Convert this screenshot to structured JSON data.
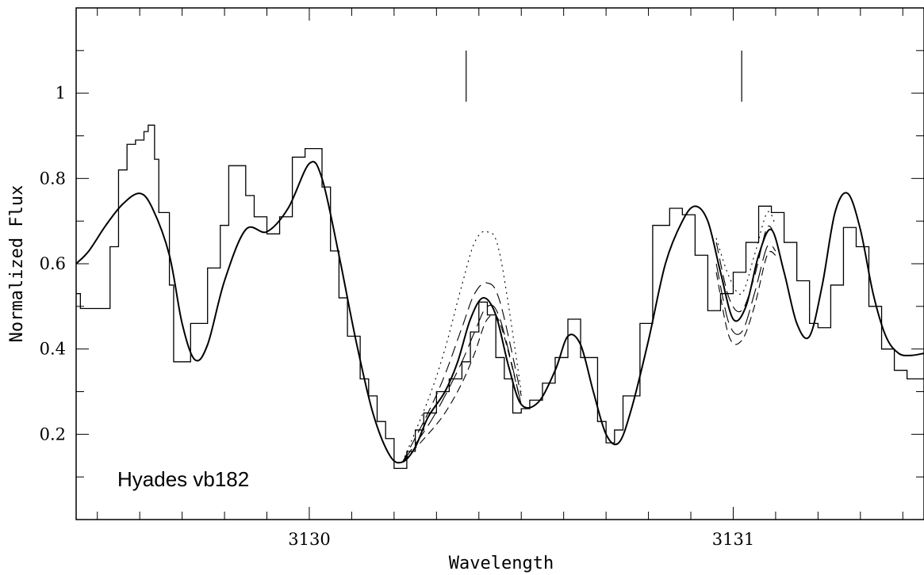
{
  "chart_data": {
    "type": "line",
    "title": "",
    "xlabel": "Wavelength",
    "ylabel": "Normalized Flux",
    "xlim": [
      3129.45,
      3131.45
    ],
    "ylim": [
      0.0,
      1.2
    ],
    "x_tick_labels": [
      {
        "value": 3130,
        "label": "3130"
      },
      {
        "value": 3131,
        "label": "3131"
      }
    ],
    "y_tick_labels": [
      {
        "value": 0.2,
        "label": "0.2"
      },
      {
        "value": 0.4,
        "label": "0.4"
      },
      {
        "value": 0.6,
        "label": "0.6"
      },
      {
        "value": 0.8,
        "label": "0.8"
      },
      {
        "value": 1.0,
        "label": "1"
      }
    ],
    "annotation": "Hyades vb182",
    "line_markers": [
      3130.37,
      3131.02
    ],
    "observed_step": {
      "x": [
        3129.45,
        3129.46,
        3129.49,
        3129.53,
        3129.55,
        3129.57,
        3129.59,
        3129.61,
        3129.62,
        3129.635,
        3129.645,
        3129.67,
        3129.68,
        3129.72,
        3129.76,
        3129.79,
        3129.81,
        3129.85,
        3129.87,
        3129.9,
        3129.93,
        3129.96,
        3129.99,
        3130.03,
        3130.05,
        3130.07,
        3130.09,
        3130.12,
        3130.14,
        3130.16,
        3130.18,
        3130.2,
        3130.23,
        3130.25,
        3130.27,
        3130.3,
        3130.33,
        3130.36,
        3130.38,
        3130.4,
        3130.42,
        3130.44,
        3130.46,
        3130.48,
        3130.5,
        3130.52,
        3130.55,
        3130.58,
        3130.61,
        3130.64,
        3130.68,
        3130.7,
        3130.72,
        3130.74,
        3130.78,
        3130.81,
        3130.85,
        3130.88,
        3130.91,
        3130.94,
        3130.97,
        3131.0,
        3131.03,
        3131.06,
        3131.09,
        3131.12,
        3131.15,
        3131.18,
        3131.2,
        3131.23,
        3131.26,
        3131.29,
        3131.32,
        3131.35,
        3131.38,
        3131.41,
        3131.44
      ],
      "y": [
        0.53,
        0.495,
        0.495,
        0.64,
        0.82,
        0.88,
        0.89,
        0.91,
        0.925,
        0.845,
        0.72,
        0.55,
        0.37,
        0.46,
        0.59,
        0.69,
        0.83,
        0.76,
        0.71,
        0.67,
        0.71,
        0.85,
        0.87,
        0.78,
        0.63,
        0.52,
        0.43,
        0.33,
        0.29,
        0.23,
        0.19,
        0.12,
        0.16,
        0.21,
        0.25,
        0.3,
        0.33,
        0.37,
        0.44,
        0.51,
        0.48,
        0.38,
        0.33,
        0.25,
        0.26,
        0.28,
        0.32,
        0.38,
        0.47,
        0.38,
        0.23,
        0.18,
        0.21,
        0.29,
        0.46,
        0.69,
        0.73,
        0.715,
        0.62,
        0.49,
        0.53,
        0.58,
        0.65,
        0.735,
        0.72,
        0.65,
        0.56,
        0.46,
        0.45,
        0.55,
        0.685,
        0.64,
        0.5,
        0.4,
        0.35,
        0.33,
        0.33
      ]
    },
    "synthetic_best": {
      "x": [
        3129.45,
        3129.48,
        3129.52,
        3129.56,
        3129.6,
        3129.63,
        3129.67,
        3129.7,
        3129.73,
        3129.76,
        3129.8,
        3129.85,
        3129.9,
        3129.95,
        3130.0,
        3130.03,
        3130.07,
        3130.11,
        3130.15,
        3130.19,
        3130.22,
        3130.25,
        3130.28,
        3130.32,
        3130.35,
        3130.38,
        3130.41,
        3130.44,
        3130.47,
        3130.5,
        3130.54,
        3130.58,
        3130.61,
        3130.64,
        3130.67,
        3130.7,
        3130.73,
        3130.76,
        3130.8,
        3130.84,
        3130.88,
        3130.91,
        3130.94,
        3130.97,
        3131.0,
        3131.03,
        3131.06,
        3131.09,
        3131.12,
        3131.15,
        3131.18,
        3131.21,
        3131.24,
        3131.27,
        3131.3,
        3131.33,
        3131.36,
        3131.39,
        3131.42,
        3131.45
      ],
      "y": [
        0.6,
        0.63,
        0.69,
        0.74,
        0.765,
        0.73,
        0.62,
        0.46,
        0.375,
        0.41,
        0.56,
        0.68,
        0.675,
        0.73,
        0.835,
        0.8,
        0.62,
        0.42,
        0.25,
        0.15,
        0.135,
        0.17,
        0.24,
        0.3,
        0.37,
        0.47,
        0.52,
        0.48,
        0.36,
        0.27,
        0.275,
        0.35,
        0.43,
        0.41,
        0.3,
        0.2,
        0.18,
        0.26,
        0.42,
        0.6,
        0.7,
        0.735,
        0.7,
        0.58,
        0.47,
        0.5,
        0.62,
        0.68,
        0.58,
        0.46,
        0.43,
        0.55,
        0.72,
        0.765,
        0.68,
        0.53,
        0.43,
        0.39,
        0.385,
        0.39
      ]
    },
    "synthetic_variants": [
      {
        "style": "dotted",
        "x": [
          3130.22,
          3130.28,
          3130.32,
          3130.36,
          3130.39,
          3130.42,
          3130.45,
          3130.5,
          3130.96,
          3130.99,
          3131.02,
          3131.05,
          3131.08,
          3131.1
        ],
        "y": [
          0.135,
          0.28,
          0.4,
          0.55,
          0.65,
          0.675,
          0.62,
          0.3,
          0.66,
          0.57,
          0.53,
          0.62,
          0.72,
          0.69
        ]
      },
      {
        "style": "dashed",
        "x": [
          3130.22,
          3130.28,
          3130.32,
          3130.36,
          3130.39,
          3130.42,
          3130.45,
          3130.5,
          3130.96,
          3130.99,
          3131.02,
          3131.05,
          3131.08,
          3131.1
        ],
        "y": [
          0.135,
          0.25,
          0.34,
          0.45,
          0.53,
          0.555,
          0.51,
          0.29,
          0.65,
          0.52,
          0.49,
          0.57,
          0.685,
          0.66
        ]
      },
      {
        "style": "dashed",
        "x": [
          3130.22,
          3130.28,
          3130.32,
          3130.36,
          3130.39,
          3130.42,
          3130.45,
          3130.5,
          3130.96,
          3130.99,
          3131.02,
          3131.05,
          3131.08,
          3131.1
        ],
        "y": [
          0.135,
          0.22,
          0.29,
          0.37,
          0.44,
          0.5,
          0.47,
          0.27,
          0.6,
          0.46,
          0.44,
          0.53,
          0.64,
          0.63
        ]
      },
      {
        "style": "dashed",
        "x": [
          3130.22,
          3130.28,
          3130.32,
          3130.36,
          3130.39,
          3130.42,
          3130.45,
          3130.5,
          3130.96,
          3130.99,
          3131.02,
          3131.05,
          3131.08,
          3131.1
        ],
        "y": [
          0.135,
          0.2,
          0.25,
          0.32,
          0.39,
          0.47,
          0.46,
          0.27,
          0.58,
          0.43,
          0.42,
          0.5,
          0.62,
          0.62
        ]
      }
    ]
  }
}
